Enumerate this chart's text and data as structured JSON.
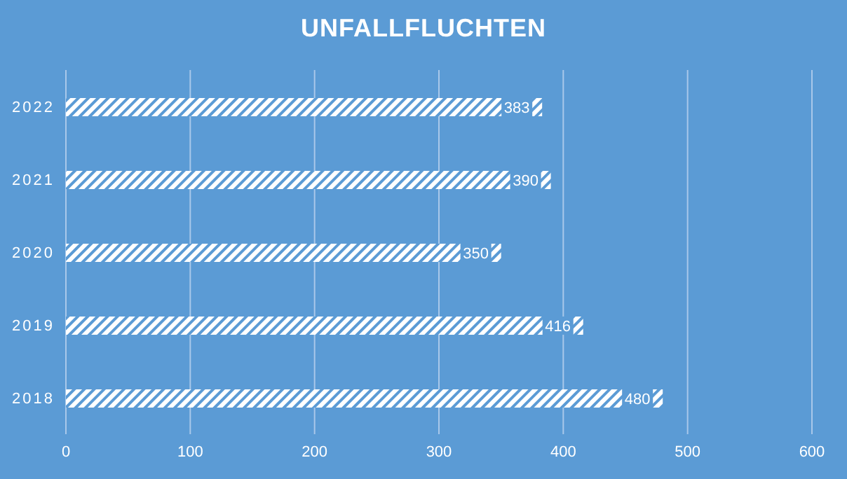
{
  "chart_data": {
    "type": "bar",
    "orientation": "horizontal",
    "title": "UNFALLFLUCHTEN",
    "categories": [
      "2022",
      "2021",
      "2020",
      "2019",
      "2018"
    ],
    "values": [
      383,
      390,
      350,
      416,
      480
    ],
    "color": "#ffffff",
    "xlim": [
      0,
      600
    ],
    "xticks": [
      0,
      100,
      200,
      300,
      400,
      500,
      600
    ],
    "grid": "x",
    "data_labels": true
  }
}
